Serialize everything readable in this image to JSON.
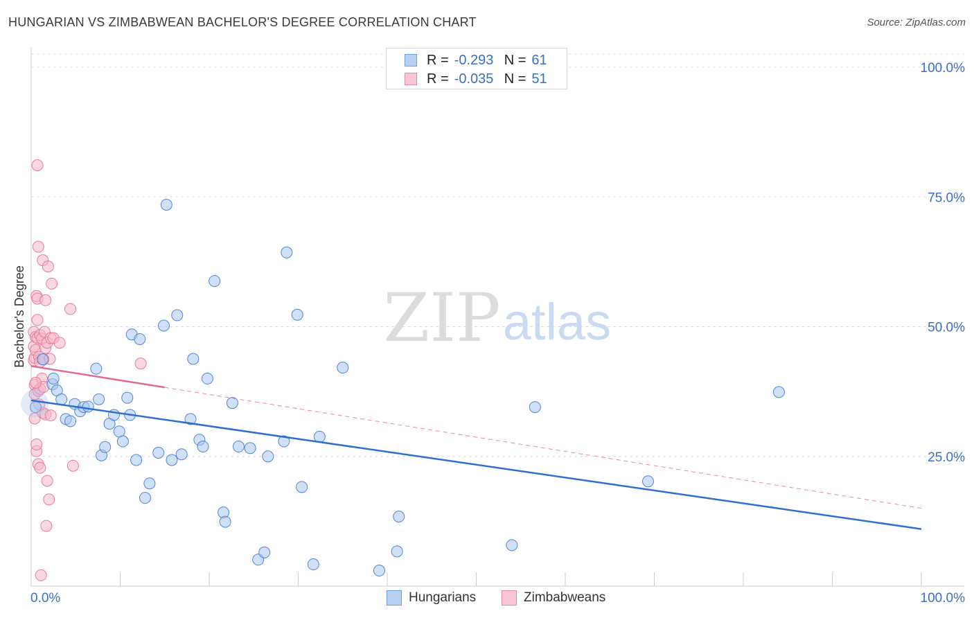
{
  "header": {
    "title": "HUNGARIAN VS ZIMBABWEAN BACHELOR'S DEGREE CORRELATION CHART",
    "source": "Source: ZipAtlas.com"
  },
  "legend_top": {
    "rows": [
      {
        "r_label": "R =",
        "r_value": "-0.293",
        "n_label": "N =",
        "n_value": "61"
      },
      {
        "r_label": "R =",
        "r_value": "-0.035",
        "n_label": "N =",
        "n_value": "51"
      }
    ]
  },
  "legend_bottom": {
    "items": [
      {
        "label": "Hungarians"
      },
      {
        "label": "Zimbabweans"
      }
    ]
  },
  "watermark": {
    "zip": "ZIP",
    "atlas": "atlas"
  },
  "colors": {
    "blue_fill": "#a9c6ee",
    "blue_stroke": "#4e87d6",
    "blue_line": "#2f6fd0",
    "pink_fill": "#f6b8cb",
    "pink_stroke": "#e67c9d",
    "pink_line": "#e06a92",
    "grid": "#dddddd",
    "tick_text": "#3b6fc4"
  },
  "chart_data": {
    "type": "scatter",
    "title": "HUNGARIAN VS ZIMBABWEAN BACHELOR'S DEGREE CORRELATION CHART",
    "xlabel": "",
    "ylabel": "Bachelor's Degree",
    "xlim": [
      0,
      100
    ],
    "ylim": [
      0,
      100
    ],
    "x_tick_labels": [
      "0.0%",
      "100.0%"
    ],
    "y_ticks": [
      25,
      50,
      75,
      100
    ],
    "y_tick_labels": [
      "25.0%",
      "50.0%",
      "75.0%",
      "100.0%"
    ],
    "series": [
      {
        "name": "Hungarians",
        "r": -0.293,
        "n": 61,
        "trend": {
          "x": [
            0,
            100
          ],
          "y": [
            35.8,
            11.0
          ]
        },
        "points": [
          [
            0.5,
            34.5
          ],
          [
            1.3,
            43.7
          ],
          [
            2.4,
            38.9
          ],
          [
            2.5,
            40.0
          ],
          [
            2.9,
            37.7
          ],
          [
            3.4,
            36.0
          ],
          [
            3.9,
            32.2
          ],
          [
            4.4,
            31.8
          ],
          [
            4.9,
            35.1
          ],
          [
            5.5,
            33.7
          ],
          [
            5.9,
            34.5
          ],
          [
            6.4,
            34.6
          ],
          [
            7.3,
            41.9
          ],
          [
            7.6,
            36.0
          ],
          [
            7.9,
            25.2
          ],
          [
            8.3,
            26.8
          ],
          [
            8.8,
            31.3
          ],
          [
            9.3,
            33.0
          ],
          [
            9.9,
            29.8
          ],
          [
            10.3,
            27.9
          ],
          [
            10.8,
            36.3
          ],
          [
            11.1,
            33.0
          ],
          [
            11.8,
            24.3
          ],
          [
            11.3,
            48.5
          ],
          [
            12.2,
            47.6
          ],
          [
            12.8,
            17.0
          ],
          [
            13.3,
            19.8
          ],
          [
            14.3,
            25.7
          ],
          [
            14.9,
            50.2
          ],
          [
            15.2,
            73.5
          ],
          [
            15.8,
            24.3
          ],
          [
            16.4,
            52.2
          ],
          [
            16.9,
            25.4
          ],
          [
            17.9,
            32.2
          ],
          [
            18.2,
            43.8
          ],
          [
            18.9,
            28.2
          ],
          [
            19.3,
            26.9
          ],
          [
            19.8,
            40.0
          ],
          [
            20.6,
            58.8
          ],
          [
            21.6,
            14.2
          ],
          [
            21.8,
            12.4
          ],
          [
            22.6,
            35.3
          ],
          [
            23.3,
            26.9
          ],
          [
            24.6,
            26.6
          ],
          [
            25.5,
            5.1
          ],
          [
            26.2,
            6.5
          ],
          [
            26.6,
            25.0
          ],
          [
            28.4,
            27.9
          ],
          [
            28.7,
            64.3
          ],
          [
            29.9,
            52.3
          ],
          [
            30.4,
            19.1
          ],
          [
            31.7,
            4.2
          ],
          [
            32.4,
            28.8
          ],
          [
            35.0,
            42.1
          ],
          [
            39.1,
            3.0
          ],
          [
            41.1,
            6.7
          ],
          [
            41.3,
            13.4
          ],
          [
            54.0,
            7.9
          ],
          [
            56.6,
            34.5
          ],
          [
            69.3,
            20.2
          ],
          [
            84.0,
            37.4
          ]
        ]
      },
      {
        "name": "Zimbabweans",
        "r": -0.035,
        "n": 51,
        "trend": {
          "x": [
            0,
            15
          ],
          "y": [
            42.4,
            38.3
          ]
        },
        "trend_extended": {
          "x": [
            15,
            100
          ],
          "y": [
            38.3,
            15.0
          ]
        },
        "points": [
          [
            0.3,
            43.5
          ],
          [
            0.3,
            49.0
          ],
          [
            0.3,
            46.2
          ],
          [
            0.4,
            38.8
          ],
          [
            0.4,
            37.0
          ],
          [
            0.4,
            44.0
          ],
          [
            0.4,
            32.3
          ],
          [
            0.5,
            48.0
          ],
          [
            0.5,
            45.5
          ],
          [
            0.6,
            55.9
          ],
          [
            0.6,
            26.0
          ],
          [
            0.6,
            27.3
          ],
          [
            0.7,
            81.1
          ],
          [
            0.7,
            51.3
          ],
          [
            0.7,
            55.4
          ],
          [
            0.7,
            47.8
          ],
          [
            0.8,
            65.4
          ],
          [
            0.8,
            37.6
          ],
          [
            0.8,
            23.5
          ],
          [
            0.9,
            44.2
          ],
          [
            0.9,
            35.0
          ],
          [
            1.0,
            22.8
          ],
          [
            1.0,
            48.4
          ],
          [
            1.0,
            43.2
          ],
          [
            1.0,
            38.0
          ],
          [
            1.1,
            2.1
          ],
          [
            1.2,
            40.0
          ],
          [
            1.2,
            47.7
          ],
          [
            1.3,
            33.4
          ],
          [
            1.3,
            62.8
          ],
          [
            1.4,
            43.7
          ],
          [
            1.4,
            38.4
          ],
          [
            1.5,
            49.0
          ],
          [
            1.6,
            55.1
          ],
          [
            1.6,
            33.1
          ],
          [
            1.6,
            45.9
          ],
          [
            1.7,
            11.6
          ],
          [
            1.8,
            20.3
          ],
          [
            1.8,
            46.9
          ],
          [
            1.9,
            61.6
          ],
          [
            2.0,
            16.7
          ],
          [
            2.1,
            43.8
          ],
          [
            2.2,
            32.9
          ],
          [
            2.2,
            47.8
          ],
          [
            2.3,
            58.3
          ],
          [
            2.5,
            47.8
          ],
          [
            3.2,
            46.9
          ],
          [
            4.4,
            53.4
          ],
          [
            4.7,
            23.2
          ],
          [
            12.3,
            42.9
          ],
          [
            0.5,
            39.2
          ]
        ]
      }
    ]
  }
}
